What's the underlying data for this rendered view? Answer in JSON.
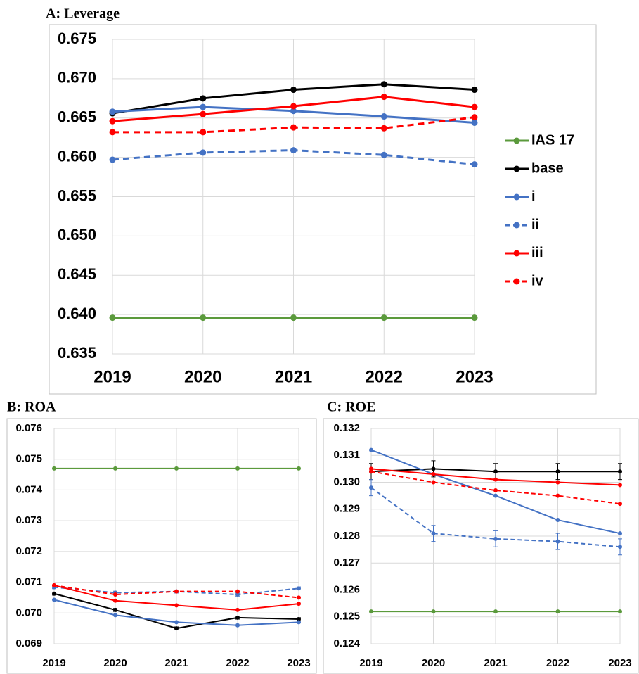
{
  "chart_data": [
    {
      "type": "line",
      "title": "A: Leverage",
      "categories": [
        "2019",
        "2020",
        "2021",
        "2022",
        "2023"
      ],
      "ylim": [
        0.635,
        0.675
      ],
      "yticks": [
        0.635,
        {
          "value": 0.64,
          "label": "0.640"
        },
        0.645,
        {
          "value": 0.65,
          "label": "0.650"
        },
        0.655,
        {
          "value": 0.66,
          "label": "0.660"
        },
        0.665,
        {
          "value": 0.67,
          "label": "0.670"
        },
        0.675
      ],
      "grid": true,
      "legend": "right",
      "series": [
        {
          "name": "IAS 17",
          "color": "#5b9a3c",
          "dashed": false,
          "values": [
            0.6396,
            0.6396,
            0.6396,
            0.6396,
            0.6396
          ]
        },
        {
          "name": "base",
          "color": "#000000",
          "dashed": false,
          "values": [
            0.6656,
            0.6675,
            0.6686,
            0.6693,
            0.6686
          ]
        },
        {
          "name": "i",
          "color": "#4472c4",
          "dashed": false,
          "values": [
            0.6658,
            0.6664,
            0.6659,
            0.6652,
            0.6644
          ]
        },
        {
          "name": "ii",
          "color": "#4472c4",
          "dashed": true,
          "values": [
            0.6597,
            0.6606,
            0.6609,
            0.6603,
            0.6591
          ]
        },
        {
          "name": "iii",
          "color": "#ff0000",
          "dashed": false,
          "values": [
            0.6646,
            0.6655,
            0.6665,
            0.6677,
            0.6664
          ]
        },
        {
          "name": "iv",
          "color": "#ff0000",
          "dashed": true,
          "values": [
            0.6632,
            0.6632,
            0.6638,
            0.6637,
            0.6651
          ]
        }
      ]
    },
    {
      "type": "line",
      "title": "B: ROA",
      "categories": [
        "2019",
        "2020",
        "2021",
        "2022",
        "2023"
      ],
      "ylim": [
        0.069,
        0.076
      ],
      "yticks": [
        0.069,
        {
          "value": 0.07,
          "label": "0.070"
        },
        0.071,
        0.072,
        0.073,
        0.074,
        0.075,
        0.076
      ],
      "grid": true,
      "series": [
        {
          "color": "#5b9a3c",
          "dashed": false,
          "values": [
            0.0747,
            0.0747,
            0.0747,
            0.0747,
            0.0747
          ]
        },
        {
          "color": "#000000",
          "dashed": false,
          "values": [
            0.07063,
            0.0701,
            0.0695,
            0.06985,
            0.0698
          ],
          "errors": [
            5e-05,
            5e-05,
            5e-05,
            5e-05,
            5e-05
          ]
        },
        {
          "color": "#4472c4",
          "dashed": false,
          "values": [
            0.07043,
            0.06993,
            0.0697,
            0.0696,
            0.0697
          ]
        },
        {
          "color": "#4472c4",
          "dashed": true,
          "values": [
            0.07084,
            0.07066,
            0.0707,
            0.0706,
            0.0708
          ],
          "errors": [
            5e-05,
            5e-05,
            5e-05,
            5e-05,
            5e-05
          ]
        },
        {
          "color": "#ff0000",
          "dashed": false,
          "values": [
            0.0709,
            0.0704,
            0.07025,
            0.0701,
            0.0703
          ]
        },
        {
          "color": "#ff0000",
          "dashed": true,
          "values": [
            0.0709,
            0.0706,
            0.0707,
            0.0707,
            0.0705
          ]
        }
      ]
    },
    {
      "type": "line",
      "title": "C: ROE",
      "categories": [
        "2019",
        "2020",
        "2021",
        "2022",
        "2023"
      ],
      "ylim": [
        0.124,
        0.132
      ],
      "yticks": [
        0.124,
        0.125,
        0.126,
        0.127,
        0.128,
        0.129,
        {
          "value": 0.13,
          "label": "0.130"
        },
        0.131,
        0.132
      ],
      "grid": true,
      "series": [
        {
          "color": "#5b9a3c",
          "dashed": false,
          "values": [
            0.1252,
            0.1252,
            0.1252,
            0.1252,
            0.1252
          ]
        },
        {
          "color": "#000000",
          "dashed": false,
          "values": [
            0.1304,
            0.1305,
            0.1304,
            0.1304,
            0.1304
          ],
          "errors": [
            0.0003,
            0.0003,
            0.0003,
            0.0003,
            0.0003
          ]
        },
        {
          "color": "#4472c4",
          "dashed": false,
          "values": [
            0.1312,
            0.1303,
            0.1295,
            0.1286,
            0.1281
          ]
        },
        {
          "color": "#4472c4",
          "dashed": true,
          "values": [
            0.1298,
            0.1281,
            0.1279,
            0.1278,
            0.1276
          ],
          "errors": [
            0.0003,
            0.0003,
            0.0003,
            0.0003,
            0.0003
          ]
        },
        {
          "color": "#ff0000",
          "dashed": false,
          "values": [
            0.1305,
            0.1303,
            0.1301,
            0.13,
            0.1299
          ]
        },
        {
          "color": "#ff0000",
          "dashed": true,
          "values": [
            0.1304,
            0.13,
            0.1297,
            0.1295,
            0.1292
          ]
        }
      ]
    }
  ]
}
